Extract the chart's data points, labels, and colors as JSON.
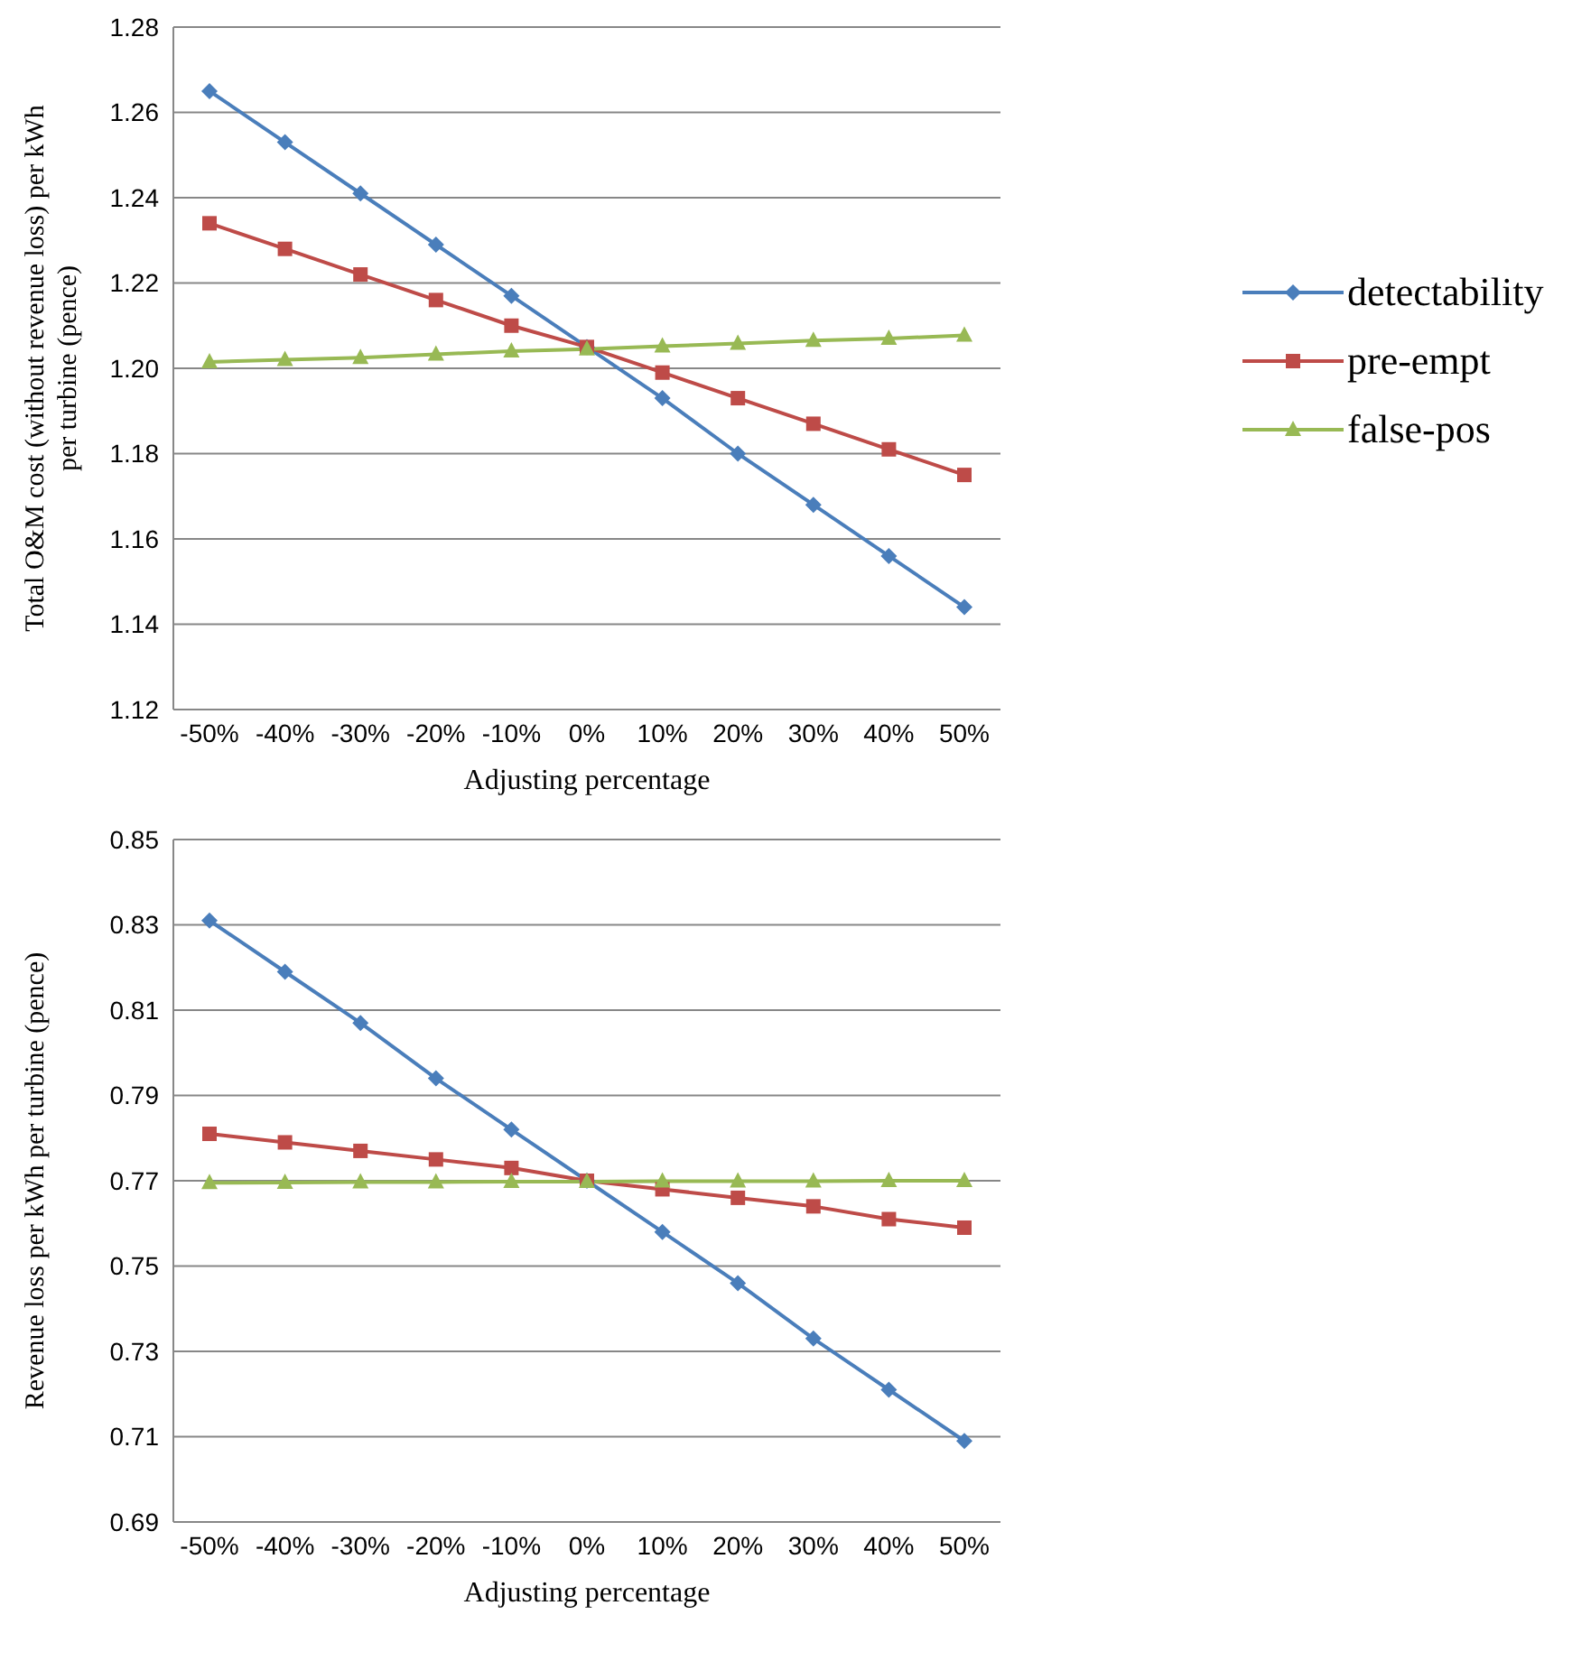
{
  "chart_data": [
    {
      "type": "line",
      "xlabel": "Adjusting percentage",
      "ylabel": "Total O&M cost (without revenue loss) per kWh per turbine (pence)",
      "categories": [
        "-50%",
        "-40%",
        "-30%",
        "-20%",
        "-10%",
        "0%",
        "10%",
        "20%",
        "30%",
        "40%",
        "50%"
      ],
      "series": [
        {
          "name": "detectability",
          "color": "#4a7ebb",
          "marker": "diamond",
          "values": [
            1.265,
            1.253,
            1.241,
            1.229,
            1.217,
            1.205,
            1.193,
            1.18,
            1.168,
            1.156,
            1.144
          ]
        },
        {
          "name": "pre-empt",
          "color": "#be4b48",
          "marker": "square",
          "values": [
            1.234,
            1.228,
            1.222,
            1.216,
            1.21,
            1.205,
            1.199,
            1.193,
            1.187,
            1.181,
            1.175
          ]
        },
        {
          "name": "false-pos",
          "color": "#98b954",
          "marker": "triangle",
          "values": [
            1.2015,
            1.202,
            1.2025,
            1.2033,
            1.204,
            1.2045,
            1.2052,
            1.2058,
            1.2065,
            1.207,
            1.2077
          ]
        }
      ],
      "ylim": [
        1.12,
        1.28
      ],
      "yticks": [
        1.12,
        1.14,
        1.16,
        1.18,
        {
          "value": 1.2,
          "label": "1.20"
        },
        1.22,
        1.24,
        1.26,
        1.28
      ],
      "grid": "y",
      "legend": "right"
    },
    {
      "type": "line",
      "xlabel": "Adjusting percentage",
      "ylabel": "Revenue loss per kWh per turbine (pence)",
      "categories": [
        "-50%",
        "-40%",
        "-30%",
        "-20%",
        "-10%",
        "0%",
        "10%",
        "20%",
        "30%",
        "40%",
        "50%"
      ],
      "series": [
        {
          "color": "#4a7ebb",
          "marker": "diamond",
          "values": [
            0.831,
            0.819,
            0.807,
            0.794,
            0.782,
            0.77,
            0.758,
            0.746,
            0.733,
            0.721,
            0.709
          ]
        },
        {
          "color": "#be4b48",
          "marker": "square",
          "values": [
            0.781,
            0.779,
            0.777,
            0.775,
            0.773,
            0.77,
            0.768,
            0.766,
            0.764,
            0.761,
            0.759
          ]
        },
        {
          "color": "#98b954",
          "marker": "triangle",
          "values": [
            0.7695,
            0.7696,
            0.7697,
            0.7697,
            0.7698,
            0.7698,
            0.7699,
            0.7699,
            0.7699,
            0.77,
            0.77
          ]
        }
      ],
      "ylim": [
        0.69,
        0.85
      ],
      "yticks": [
        0.69,
        0.71,
        0.73,
        0.75,
        0.77,
        0.79,
        0.81,
        0.83,
        0.85
      ],
      "grid": "y",
      "legend": false
    }
  ]
}
